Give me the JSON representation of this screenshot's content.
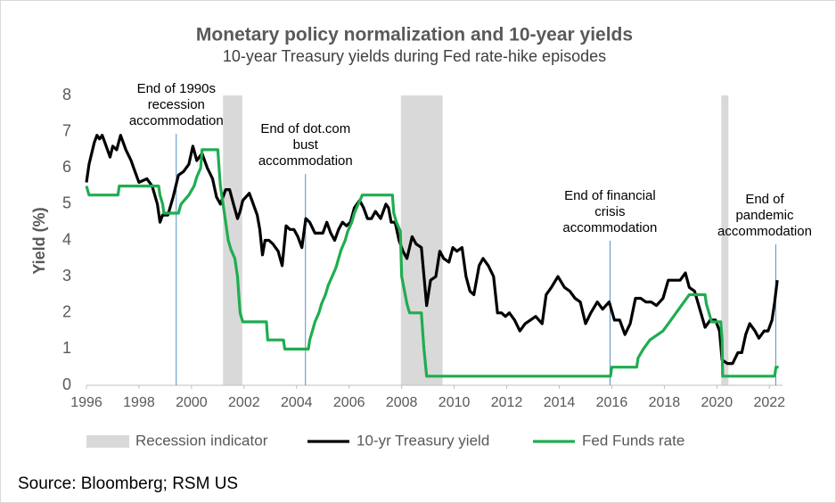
{
  "chart_data": {
    "type": "line",
    "title": "Monetary policy normalization and 10-year yields",
    "subtitle": "10-year Treasury yields during Fed rate-hike episodes",
    "y_label": "Yield (%)",
    "source": "Source: Bloomberg; RSM US",
    "xlim": [
      1996,
      2022.5
    ],
    "xticks": [
      1996,
      1998,
      2000,
      2002,
      2004,
      2006,
      2008,
      2010,
      2012,
      2014,
      2016,
      2018,
      2020,
      2022
    ],
    "ylim": [
      0,
      8
    ],
    "yticks": [
      0,
      1,
      2,
      3,
      4,
      5,
      6,
      7,
      8
    ],
    "grid": false,
    "recessions": {
      "name": "Recession indicator",
      "color": "#d9d9d9",
      "ranges": [
        [
          2001.2,
          2001.93
        ],
        [
          2007.97,
          2009.56
        ],
        [
          2020.17,
          2020.44
        ]
      ]
    },
    "series": [
      {
        "name": "10-yr Treasury yield",
        "color": "#000000",
        "x": [
          1996.0,
          1996.1,
          1996.3,
          1996.4,
          1996.5,
          1996.6,
          1996.8,
          1996.9,
          1997.0,
          1997.15,
          1997.3,
          1997.5,
          1997.7,
          1997.8,
          1998.0,
          1998.3,
          1998.5,
          1998.7,
          1998.8,
          1998.9,
          1999.1,
          1999.3,
          1999.5,
          1999.7,
          1999.9,
          2000.05,
          2000.2,
          2000.4,
          2000.6,
          2000.8,
          2000.95,
          2001.1,
          2001.3,
          2001.45,
          2001.6,
          2001.75,
          2001.85,
          2001.95,
          2002.2,
          2002.3,
          2002.5,
          2002.6,
          2002.7,
          2002.8,
          2002.95,
          2003.1,
          2003.3,
          2003.45,
          2003.6,
          2003.75,
          2003.9,
          2004.05,
          2004.2,
          2004.35,
          2004.5,
          2004.7,
          2004.85,
          2005.0,
          2005.15,
          2005.3,
          2005.45,
          2005.6,
          2005.75,
          2005.9,
          2006.05,
          2006.2,
          2006.4,
          2006.55,
          2006.7,
          2006.85,
          2007.0,
          2007.2,
          2007.4,
          2007.5,
          2007.6,
          2007.75,
          2007.9,
          2008.05,
          2008.2,
          2008.4,
          2008.55,
          2008.75,
          2008.95,
          2009.1,
          2009.3,
          2009.45,
          2009.6,
          2009.8,
          2009.95,
          2010.1,
          2010.3,
          2010.45,
          2010.6,
          2010.75,
          2010.95,
          2011.1,
          2011.3,
          2011.5,
          2011.65,
          2011.8,
          2011.95,
          2012.1,
          2012.3,
          2012.5,
          2012.7,
          2012.9,
          2013.1,
          2013.35,
          2013.5,
          2013.7,
          2013.95,
          2014.2,
          2014.4,
          2014.6,
          2014.8,
          2015.0,
          2015.2,
          2015.45,
          2015.65,
          2015.9,
          2016.1,
          2016.3,
          2016.5,
          2016.7,
          2016.9,
          2017.1,
          2017.3,
          2017.5,
          2017.7,
          2017.95,
          2018.15,
          2018.35,
          2018.6,
          2018.8,
          2018.95,
          2019.15,
          2019.35,
          2019.55,
          2019.75,
          2019.95,
          2020.1,
          2020.2,
          2020.4,
          2020.6,
          2020.8,
          2020.95,
          2021.1,
          2021.25,
          2021.45,
          2021.6,
          2021.8,
          2021.95,
          2022.1,
          2022.2,
          2022.3
        ],
        "values": [
          5.6,
          6.1,
          6.7,
          6.9,
          6.8,
          6.9,
          6.5,
          6.3,
          6.6,
          6.5,
          6.9,
          6.5,
          6.2,
          6.0,
          5.6,
          5.7,
          5.5,
          5.0,
          4.5,
          4.7,
          4.7,
          5.2,
          5.8,
          5.9,
          6.1,
          6.6,
          6.2,
          6.4,
          6.0,
          5.7,
          5.2,
          5.0,
          5.4,
          5.4,
          5.0,
          4.6,
          4.8,
          5.1,
          5.3,
          5.1,
          4.7,
          4.3,
          3.6,
          4.0,
          4.0,
          3.9,
          3.7,
          3.3,
          4.4,
          4.3,
          4.3,
          4.1,
          3.8,
          4.6,
          4.5,
          4.2,
          4.2,
          4.2,
          4.5,
          4.2,
          4.0,
          4.3,
          4.5,
          4.4,
          4.5,
          4.9,
          5.1,
          4.9,
          4.6,
          4.6,
          4.8,
          4.6,
          5.0,
          4.9,
          4.5,
          4.5,
          4.0,
          3.7,
          3.5,
          4.1,
          3.9,
          3.8,
          2.2,
          2.9,
          3.0,
          3.7,
          3.5,
          3.4,
          3.8,
          3.7,
          3.8,
          3.0,
          2.6,
          2.5,
          3.3,
          3.5,
          3.3,
          3.0,
          2.0,
          2.0,
          1.9,
          2.0,
          1.8,
          1.5,
          1.7,
          1.8,
          1.9,
          1.7,
          2.5,
          2.7,
          3.0,
          2.7,
          2.6,
          2.4,
          2.3,
          1.7,
          2.0,
          2.3,
          2.1,
          2.3,
          1.8,
          1.8,
          1.4,
          1.7,
          2.4,
          2.4,
          2.3,
          2.3,
          2.2,
          2.4,
          2.9,
          2.9,
          2.9,
          3.1,
          2.7,
          2.6,
          2.1,
          1.6,
          1.8,
          1.8,
          1.5,
          0.7,
          0.6,
          0.6,
          0.9,
          0.9,
          1.4,
          1.7,
          1.5,
          1.3,
          1.5,
          1.5,
          1.8,
          2.3,
          2.9
        ]
      },
      {
        "name": "Fed Funds rate",
        "color": "#1fad4f",
        "x": [
          1996.0,
          1996.1,
          1997.2,
          1997.25,
          1998.75,
          1998.8,
          1998.9,
          1998.95,
          1999.5,
          1999.6,
          1999.9,
          2000.1,
          2000.2,
          2000.35,
          2000.4,
          2001.0,
          2001.05,
          2001.1,
          2001.2,
          2001.3,
          2001.4,
          2001.5,
          2001.65,
          2001.75,
          2001.8,
          2001.85,
          2001.95,
          2002.85,
          2002.9,
          2003.5,
          2003.55,
          2004.45,
          2004.5,
          2004.6,
          2004.7,
          2004.85,
          2004.95,
          2005.1,
          2005.2,
          2005.35,
          2005.5,
          2005.6,
          2005.7,
          2005.85,
          2005.95,
          2006.1,
          2006.2,
          2006.35,
          2006.5,
          2007.65,
          2007.7,
          2007.8,
          2007.95,
          2008.0,
          2008.2,
          2008.3,
          2008.75,
          2008.8,
          2008.85,
          2008.95,
          2015.95,
          2016.0,
          2016.95,
          2017.0,
          2017.2,
          2017.45,
          2017.95,
          2018.2,
          2018.45,
          2018.7,
          2018.95,
          2019.55,
          2019.6,
          2019.7,
          2019.8,
          2020.15,
          2020.2,
          2020.22,
          2022.2,
          2022.25,
          2022.35
        ],
        "values": [
          5.5,
          5.25,
          5.25,
          5.5,
          5.5,
          5.25,
          5.0,
          4.75,
          4.75,
          5.0,
          5.25,
          5.5,
          5.75,
          6.0,
          6.5,
          6.5,
          6.0,
          5.5,
          5.0,
          4.5,
          4.0,
          3.75,
          3.5,
          3.0,
          2.5,
          2.0,
          1.75,
          1.75,
          1.25,
          1.25,
          1.0,
          1.0,
          1.25,
          1.5,
          1.75,
          2.0,
          2.25,
          2.5,
          2.75,
          3.0,
          3.25,
          3.5,
          3.75,
          4.0,
          4.25,
          4.5,
          4.75,
          5.0,
          5.25,
          5.25,
          4.75,
          4.5,
          4.25,
          3.0,
          2.25,
          2.0,
          2.0,
          1.5,
          1.0,
          0.25,
          0.25,
          0.5,
          0.5,
          0.75,
          1.0,
          1.25,
          1.5,
          1.75,
          2.0,
          2.25,
          2.5,
          2.5,
          2.25,
          2.0,
          1.75,
          1.75,
          1.25,
          0.25,
          0.25,
          0.5,
          0.5
        ]
      }
    ],
    "annotations": [
      {
        "x": 1999.42,
        "lines": [
          "End of 1990s",
          "recession",
          "accommodation"
        ]
      },
      {
        "x": 2004.34,
        "lines": [
          "End of dot.com",
          "bust",
          "accommodation"
        ]
      },
      {
        "x": 2015.93,
        "lines": [
          "End of financial",
          "crisis",
          "accommodation"
        ]
      },
      {
        "x": 2022.24,
        "lines": [
          "End of",
          "pandemic",
          "accommodation"
        ]
      }
    ],
    "annotation_color": "#2e75b6"
  }
}
